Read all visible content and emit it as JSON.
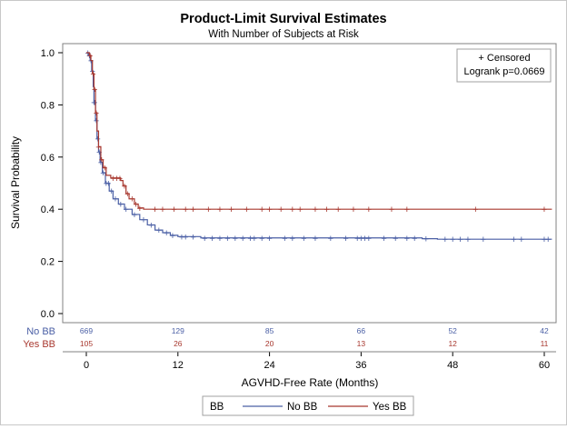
{
  "chart_data": {
    "type": "line",
    "subtype": "kaplan-meier",
    "title": "Product-Limit Survival Estimates",
    "subtitle": "With Number of Subjects at Risk",
    "xlabel": "AGVHD-Free Rate (Months)",
    "ylabel": "Survival Probability",
    "xlim": [
      -2,
      61
    ],
    "ylim": [
      0,
      1.0
    ],
    "xticks": [
      0,
      12,
      24,
      36,
      48,
      60
    ],
    "yticks": [
      0.0,
      0.2,
      0.4,
      0.6,
      0.8,
      1.0
    ],
    "inset": {
      "censored_label": "+ Censored",
      "censored_glyph": "+",
      "logrank": "Logrank p=0.0669",
      "position": "top-right"
    },
    "legend": {
      "title": "BB",
      "position": "bottom"
    },
    "risk_table": {
      "times": [
        0,
        12,
        24,
        36,
        48,
        60
      ],
      "rows": [
        {
          "label": "No BB",
          "color": "#4a5fa5",
          "values": [
            "669",
            "129",
            "85",
            "66",
            "52",
            "42"
          ]
        },
        {
          "label": "Yes BB",
          "color": "#a8382f",
          "values": [
            "105",
            "26",
            "20",
            "13",
            "12",
            "11"
          ]
        }
      ]
    },
    "series": [
      {
        "name": "No BB",
        "color": "#4a5fa5",
        "points": [
          [
            0,
            1.0
          ],
          [
            0.3,
            0.99
          ],
          [
            0.5,
            0.97
          ],
          [
            0.7,
            0.93
          ],
          [
            0.9,
            0.87
          ],
          [
            1.0,
            0.81
          ],
          [
            1.2,
            0.74
          ],
          [
            1.4,
            0.67
          ],
          [
            1.6,
            0.62
          ],
          [
            1.8,
            0.58
          ],
          [
            2.1,
            0.54
          ],
          [
            2.5,
            0.5
          ],
          [
            3.0,
            0.47
          ],
          [
            3.5,
            0.44
          ],
          [
            4.2,
            0.42
          ],
          [
            5.0,
            0.4
          ],
          [
            6.0,
            0.38
          ],
          [
            7.0,
            0.36
          ],
          [
            8.0,
            0.34
          ],
          [
            9.0,
            0.32
          ],
          [
            10,
            0.31
          ],
          [
            11,
            0.3
          ],
          [
            12,
            0.295
          ],
          [
            15,
            0.29
          ],
          [
            20,
            0.29
          ],
          [
            30,
            0.29
          ],
          [
            40,
            0.29
          ],
          [
            44,
            0.287
          ],
          [
            46,
            0.285
          ],
          [
            61,
            0.285
          ]
        ],
        "censored": [
          0.2,
          0.4,
          0.6,
          0.8,
          1.0,
          1.1,
          1.3,
          1.5,
          1.7,
          1.9,
          2.2,
          2.6,
          2.9,
          3.3,
          3.8,
          4.5,
          5.2,
          6.3,
          7.5,
          8.5,
          9.5,
          10.5,
          11.3,
          12.5,
          13,
          14,
          15.5,
          16.5,
          17.5,
          18.5,
          19.5,
          20.5,
          21.5,
          22,
          23,
          24,
          26,
          27,
          28.5,
          30,
          32,
          34,
          35.5,
          36,
          36.5,
          37,
          39,
          40.5,
          42,
          43,
          44.5,
          47,
          48,
          49,
          50,
          52,
          56,
          57,
          60,
          60.5
        ]
      },
      {
        "name": "Yes BB",
        "color": "#a8382f",
        "points": [
          [
            0,
            1.0
          ],
          [
            0.4,
            0.99
          ],
          [
            0.6,
            0.97
          ],
          [
            0.8,
            0.92
          ],
          [
            1.0,
            0.86
          ],
          [
            1.2,
            0.77
          ],
          [
            1.4,
            0.7
          ],
          [
            1.6,
            0.64
          ],
          [
            1.9,
            0.59
          ],
          [
            2.2,
            0.56
          ],
          [
            2.6,
            0.53
          ],
          [
            3.2,
            0.52
          ],
          [
            4.5,
            0.51
          ],
          [
            4.8,
            0.49
          ],
          [
            5.2,
            0.46
          ],
          [
            5.6,
            0.44
          ],
          [
            6.3,
            0.42
          ],
          [
            6.8,
            0.405
          ],
          [
            7.5,
            0.4
          ],
          [
            61,
            0.4
          ]
        ],
        "censored": [
          0.5,
          0.9,
          1.1,
          1.3,
          1.6,
          2.0,
          2.4,
          3.5,
          4.0,
          4.4,
          5.0,
          5.4,
          6.0,
          6.5,
          7.0,
          9,
          10,
          11.5,
          13,
          14,
          16,
          17.5,
          19,
          21,
          23,
          24,
          25.5,
          27,
          28,
          30,
          31.5,
          33,
          35,
          37,
          40,
          42,
          51,
          60
        ]
      }
    ]
  }
}
